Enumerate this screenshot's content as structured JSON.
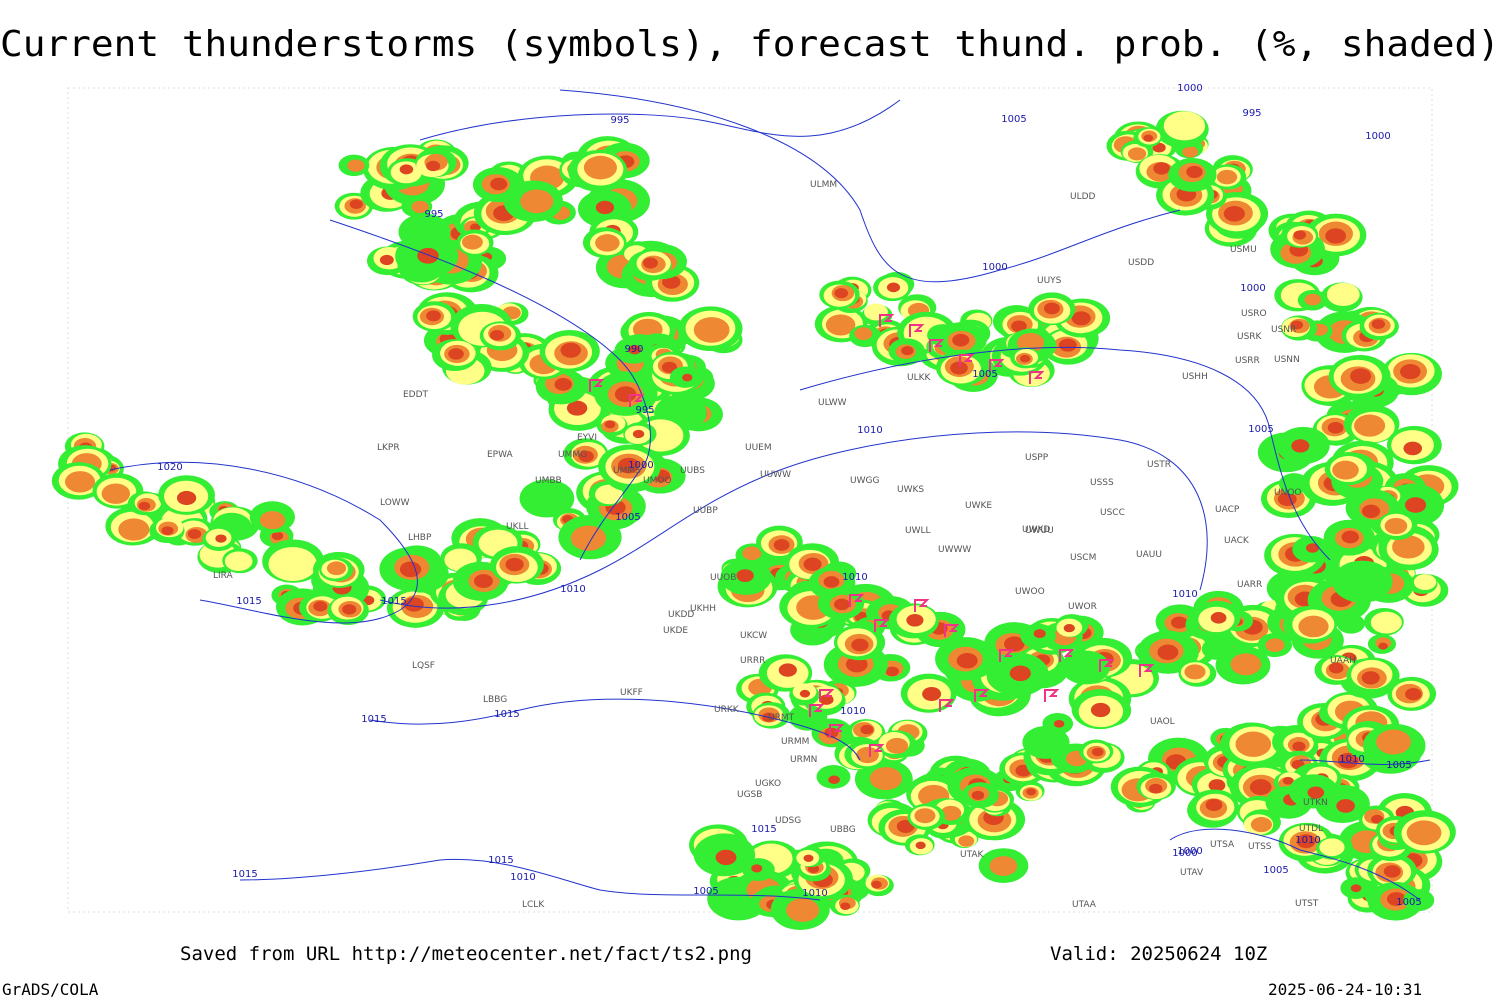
{
  "header": {
    "title": "Current thunderstorms (symbols), forecast thund. prob. (%, shaded)"
  },
  "map": {
    "isobar_labels": [
      "995",
      "995",
      "1000",
      "1005",
      "995",
      "990",
      "995",
      "1000",
      "1005",
      "1010",
      "1015",
      "1015",
      "1020",
      "1015",
      "1015",
      "1015",
      "1010",
      "1015",
      "1005",
      "1010",
      "1010",
      "1010",
      "1015",
      "1010",
      "1000",
      "1005",
      "1005",
      "1010",
      "1000",
      "1000",
      "1000",
      "1010",
      "1010",
      "1000",
      "1005",
      "1005",
      "1005"
    ],
    "stations": [
      "EDDT",
      "EPWA",
      "LKPR",
      "LOWW",
      "LHBP",
      "LIRA",
      "LQSF",
      "LBBG",
      "UMMG",
      "UMBB",
      "EYVI",
      "UMMS",
      "UMOO",
      "UUBS",
      "UUEM",
      "UUWW",
      "UUBP",
      "UKLL",
      "UUOB",
      "UKHH",
      "UKDD",
      "UKDE",
      "UKCW",
      "URRR",
      "UKFF",
      "URKK",
      "URMT",
      "URMM",
      "URMN",
      "UGSB",
      "UBBG",
      "UGKO",
      "UDSG",
      "UWGG",
      "UWKS",
      "UWKE",
      "UWLL",
      "UWWW",
      "UWKD",
      "UWUU",
      "ULKK",
      "ULWW",
      "ULMM",
      "ULDD",
      "UUYS",
      "USDD",
      "USMU",
      "USRO",
      "USRK",
      "USNR",
      "USRR",
      "USNN",
      "USHH",
      "USPP",
      "USSS",
      "USTR",
      "USCC",
      "UACP",
      "UACK",
      "USCM",
      "UAUU",
      "UWOO",
      "UWOR",
      "UARR",
      "UTAK",
      "UTAA",
      "UTSS",
      "UTSA",
      "UTAV",
      "UTST",
      "UTKN",
      "UTDL",
      "UAOL",
      "UAAH",
      "UNOO",
      "LCLK"
    ]
  },
  "footer": {
    "source": "Saved from URL http://meteocenter.net/fact/ts2.png",
    "valid": "Valid: 20250624 10Z",
    "software": "GrADS/COLA",
    "timestamp": "2025-06-24-10:31"
  }
}
